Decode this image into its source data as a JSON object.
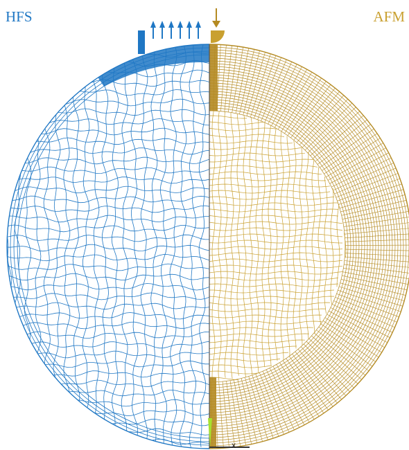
{
  "labels": {
    "left": "HFS",
    "right": "AFM",
    "axis": "x"
  },
  "colors": {
    "hfs": "#1f77c4",
    "afm": "#c9a030",
    "afm_dark": "#b48a22",
    "indenter_tip": "#a6e22e"
  },
  "icons": {
    "pressure_arrows": "up-arrow-icon",
    "indenter_arrow": "down-arrow-icon"
  }
}
